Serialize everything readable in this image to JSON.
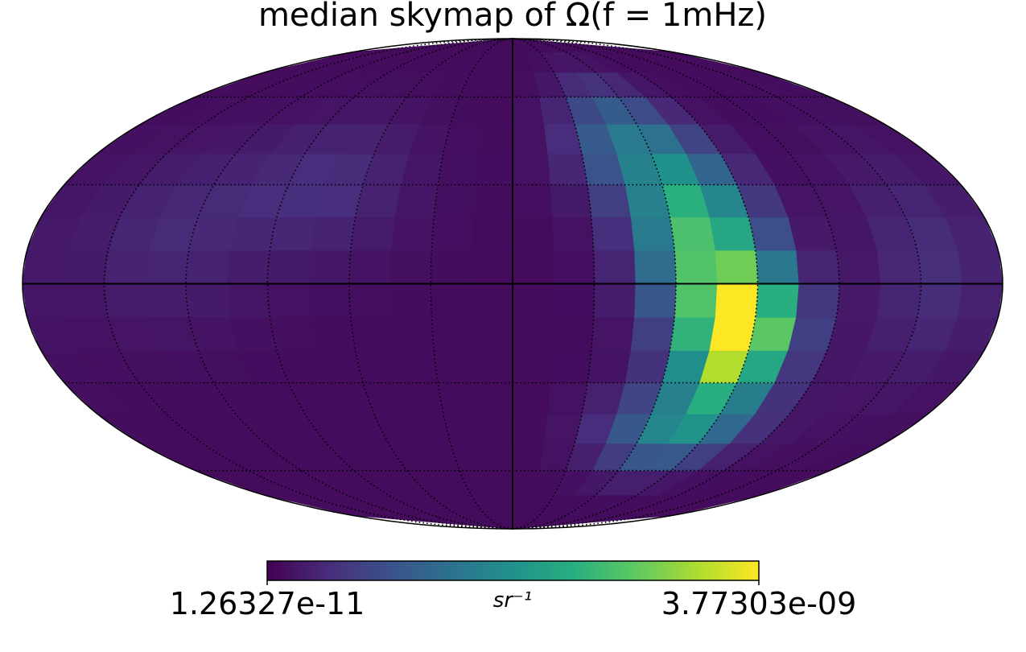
{
  "chart_data": {
    "type": "heatmap",
    "projection": "mollweide",
    "title": "median skymap of Ω(f = 1mHz)",
    "colormap": "viridis",
    "colorbar": {
      "min_label": "1.26327e-11",
      "max_label": "3.77303e-09",
      "unit_label": "sr⁻¹",
      "min": 1.26327e-11,
      "max": 3.77303e-09,
      "placement": "bottom"
    },
    "graticule": {
      "meridians_deg": [
        -150,
        -120,
        -90,
        -60,
        -30,
        0,
        30,
        60,
        90,
        120,
        150
      ],
      "parallels_deg": [
        -60,
        -30,
        0,
        30,
        60
      ],
      "style": "dotted"
    },
    "hotspots": [
      {
        "lon": -85,
        "lat": -15,
        "amp": 1.0,
        "sig_lon": 14,
        "sig_lat": 14
      },
      {
        "lon": -70,
        "lat": 15,
        "amp": 0.62,
        "sig_lon": 16,
        "sig_lat": 18
      },
      {
        "lon": -50,
        "lat": 45,
        "amp": 0.3,
        "sig_lon": 18,
        "sig_lat": 14
      },
      {
        "lon": -75,
        "lat": -45,
        "amp": 0.4,
        "sig_lon": 22,
        "sig_lat": 10
      },
      {
        "lon": 75,
        "lat": 30,
        "amp": 0.1,
        "sig_lon": 25,
        "sig_lat": 16
      },
      {
        "lon": 130,
        "lat": 15,
        "amp": 0.08,
        "sig_lon": 25,
        "sig_lat": 20
      },
      {
        "lon": -155,
        "lat": 5,
        "amp": 0.1,
        "sig_lon": 18,
        "sig_lat": 25
      }
    ]
  }
}
